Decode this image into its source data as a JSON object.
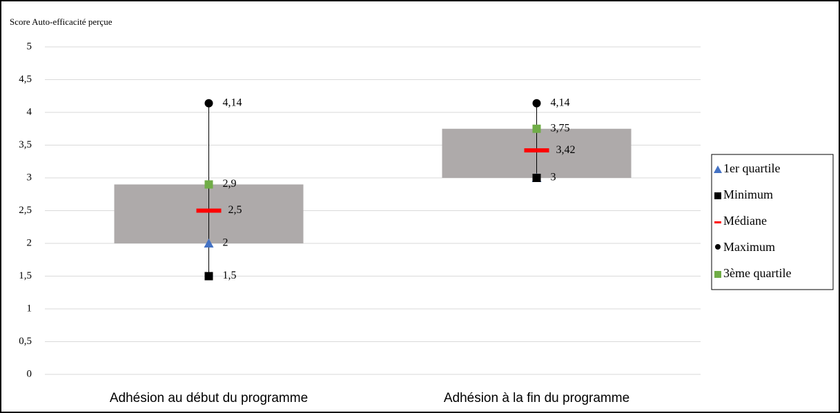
{
  "chart_data": {
    "type": "box",
    "y_label": "Score Auto-efficacité perçue",
    "categories": [
      "Adhésion au début du programme",
      "Adhésion à la fin du programme"
    ],
    "box_color": "#aeaaaa",
    "series": [
      {
        "name": "1er quartile",
        "color": "#4472c4",
        "marker": "triangle",
        "values": [
          2,
          3
        ],
        "value_labels": [
          "2",
          null
        ]
      },
      {
        "name": "Minimum",
        "color": "#000000",
        "marker": "square",
        "values": [
          1.5,
          3
        ],
        "value_labels": [
          "1,5",
          "3"
        ]
      },
      {
        "name": "Médiane",
        "color": "#ff0000",
        "marker": "dash",
        "values": [
          2.5,
          3.42
        ],
        "value_labels": [
          "2,5",
          "3,42"
        ]
      },
      {
        "name": "Maximum",
        "color": "#000000",
        "marker": "circle",
        "values": [
          4.14,
          4.14
        ],
        "value_labels": [
          "4,14",
          "4,14"
        ]
      },
      {
        "name": "3ème quartile",
        "color": "#70ad47",
        "marker": "square",
        "values": [
          2.9,
          3.75
        ],
        "value_labels": [
          "2,9",
          "3,75"
        ]
      }
    ],
    "ylim": [
      0,
      5
    ],
    "yticks": [
      0,
      {
        "value": 0.5,
        "label": "0,5"
      },
      1,
      {
        "value": 1.5,
        "label": "1,5"
      },
      2,
      {
        "value": 2.5,
        "label": "2,5"
      },
      3,
      {
        "value": 3.5,
        "label": "3,5"
      },
      4,
      {
        "value": 4.5,
        "label": "4,5"
      },
      5
    ],
    "grid": true
  }
}
